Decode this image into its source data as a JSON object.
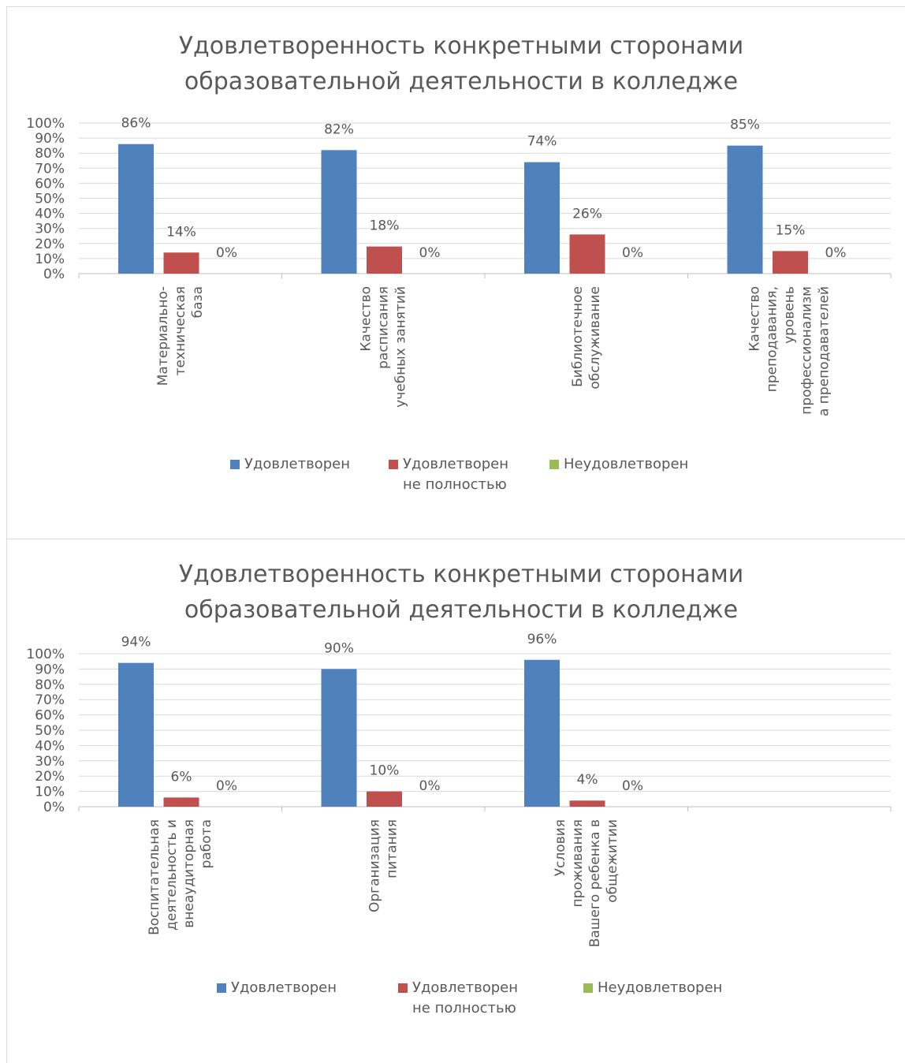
{
  "chart_data": [
    {
      "type": "bar",
      "title": "Удовлетворенность конкретными сторонами\nобразовательной деятельности в колледже",
      "categories": [
        "Материально-\nтехническая\nбаза",
        "Качество\nрасписания\nучебных занятий",
        "Библиотечное\nобслуживание",
        "Качество\nпреподавания,\nуровень\nпрофессионализм\nа преподавателей"
      ],
      "series": [
        {
          "name": "Удовлетворен",
          "color": "#4f81bd",
          "values": [
            86,
            82,
            74,
            85
          ],
          "value_labels": [
            "86%",
            "82%",
            "74%",
            "85%"
          ]
        },
        {
          "name": "Удовлетворен не полностью",
          "color": "#c0504d",
          "values": [
            14,
            18,
            26,
            15
          ],
          "value_labels": [
            "14%",
            "18%",
            "26%",
            "15%"
          ]
        },
        {
          "name": "Неудовлетворен",
          "color": "#9bbb59",
          "values": [
            0,
            0,
            0,
            0
          ],
          "value_labels": [
            "0%",
            "0%",
            "0%",
            "0%"
          ]
        }
      ],
      "ylim": [
        0,
        100
      ],
      "yticks": [
        {
          "value": 0,
          "label": "0%"
        },
        {
          "value": 10,
          "label": "10%"
        },
        {
          "value": 20,
          "label": "20%"
        },
        {
          "value": 30,
          "label": "30%"
        },
        {
          "value": 40,
          "label": "40%"
        },
        {
          "value": 50,
          "label": "50%"
        },
        {
          "value": 60,
          "label": "60%"
        },
        {
          "value": 70,
          "label": "70%"
        },
        {
          "value": 80,
          "label": "80%"
        },
        {
          "value": 90,
          "label": "90%"
        },
        {
          "value": 100,
          "label": "100%"
        }
      ],
      "grid": true,
      "legend": "bottom"
    },
    {
      "type": "bar",
      "title": "Удовлетворенность конкретными сторонами\nобразовательной деятельности в колледже",
      "categories": [
        "Воспитательная\nдеятельность и\nвнеаудиторная\nработа",
        "Организация\nпитания",
        "Условия\nпроживания\nВашего ребенка в\nобщежитии",
        null
      ],
      "series": [
        {
          "name": "Удовлетворен",
          "color": "#4f81bd",
          "values": [
            94,
            90,
            96,
            null
          ],
          "value_labels": [
            "94%",
            "90%",
            "96%",
            null
          ]
        },
        {
          "name": "Удовлетворен не полностью",
          "color": "#c0504d",
          "values": [
            6,
            10,
            4,
            null
          ],
          "value_labels": [
            "6%",
            "10%",
            "4%",
            null
          ]
        },
        {
          "name": "Неудовлетворен",
          "color": "#9bbb59",
          "values": [
            0,
            0,
            0,
            null
          ],
          "value_labels": [
            "0%",
            "0%",
            "0%",
            null
          ]
        }
      ],
      "ylim": [
        0,
        100
      ],
      "yticks": [
        {
          "value": 0,
          "label": "0%"
        },
        {
          "value": 10,
          "label": "10%"
        },
        {
          "value": 20,
          "label": "20%"
        },
        {
          "value": 30,
          "label": "30%"
        },
        {
          "value": 40,
          "label": "40%"
        },
        {
          "value": 50,
          "label": "50%"
        },
        {
          "value": 60,
          "label": "60%"
        },
        {
          "value": 70,
          "label": "70%"
        },
        {
          "value": 80,
          "label": "80%"
        },
        {
          "value": 90,
          "label": "90%"
        },
        {
          "value": 100,
          "label": "100%"
        }
      ],
      "grid": true,
      "legend": "bottom"
    }
  ]
}
